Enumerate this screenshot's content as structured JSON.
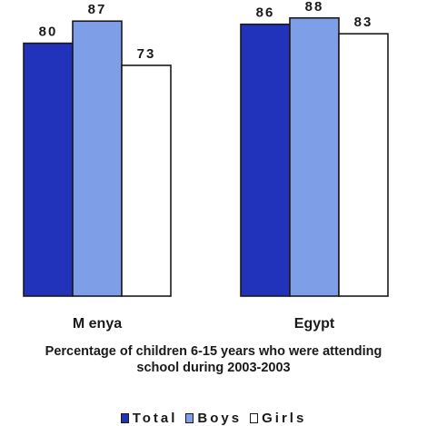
{
  "chart_data": {
    "type": "bar",
    "categories": [
      "M enya",
      "Egypt"
    ],
    "series": [
      {
        "name": "Total",
        "values": [
          80,
          86
        ],
        "color": "#2233bb"
      },
      {
        "name": "Boys",
        "values": [
          87,
          88
        ],
        "color": "#7f9ee8"
      },
      {
        "name": "Girls",
        "values": [
          73,
          83
        ],
        "color": "#ffffff"
      }
    ],
    "title": "",
    "caption": [
      "Percentage of children 6-15 years who were attending",
      "school during 2003-2003"
    ],
    "ylim": [
      0,
      100
    ],
    "grid": false,
    "legend": "bottom"
  }
}
